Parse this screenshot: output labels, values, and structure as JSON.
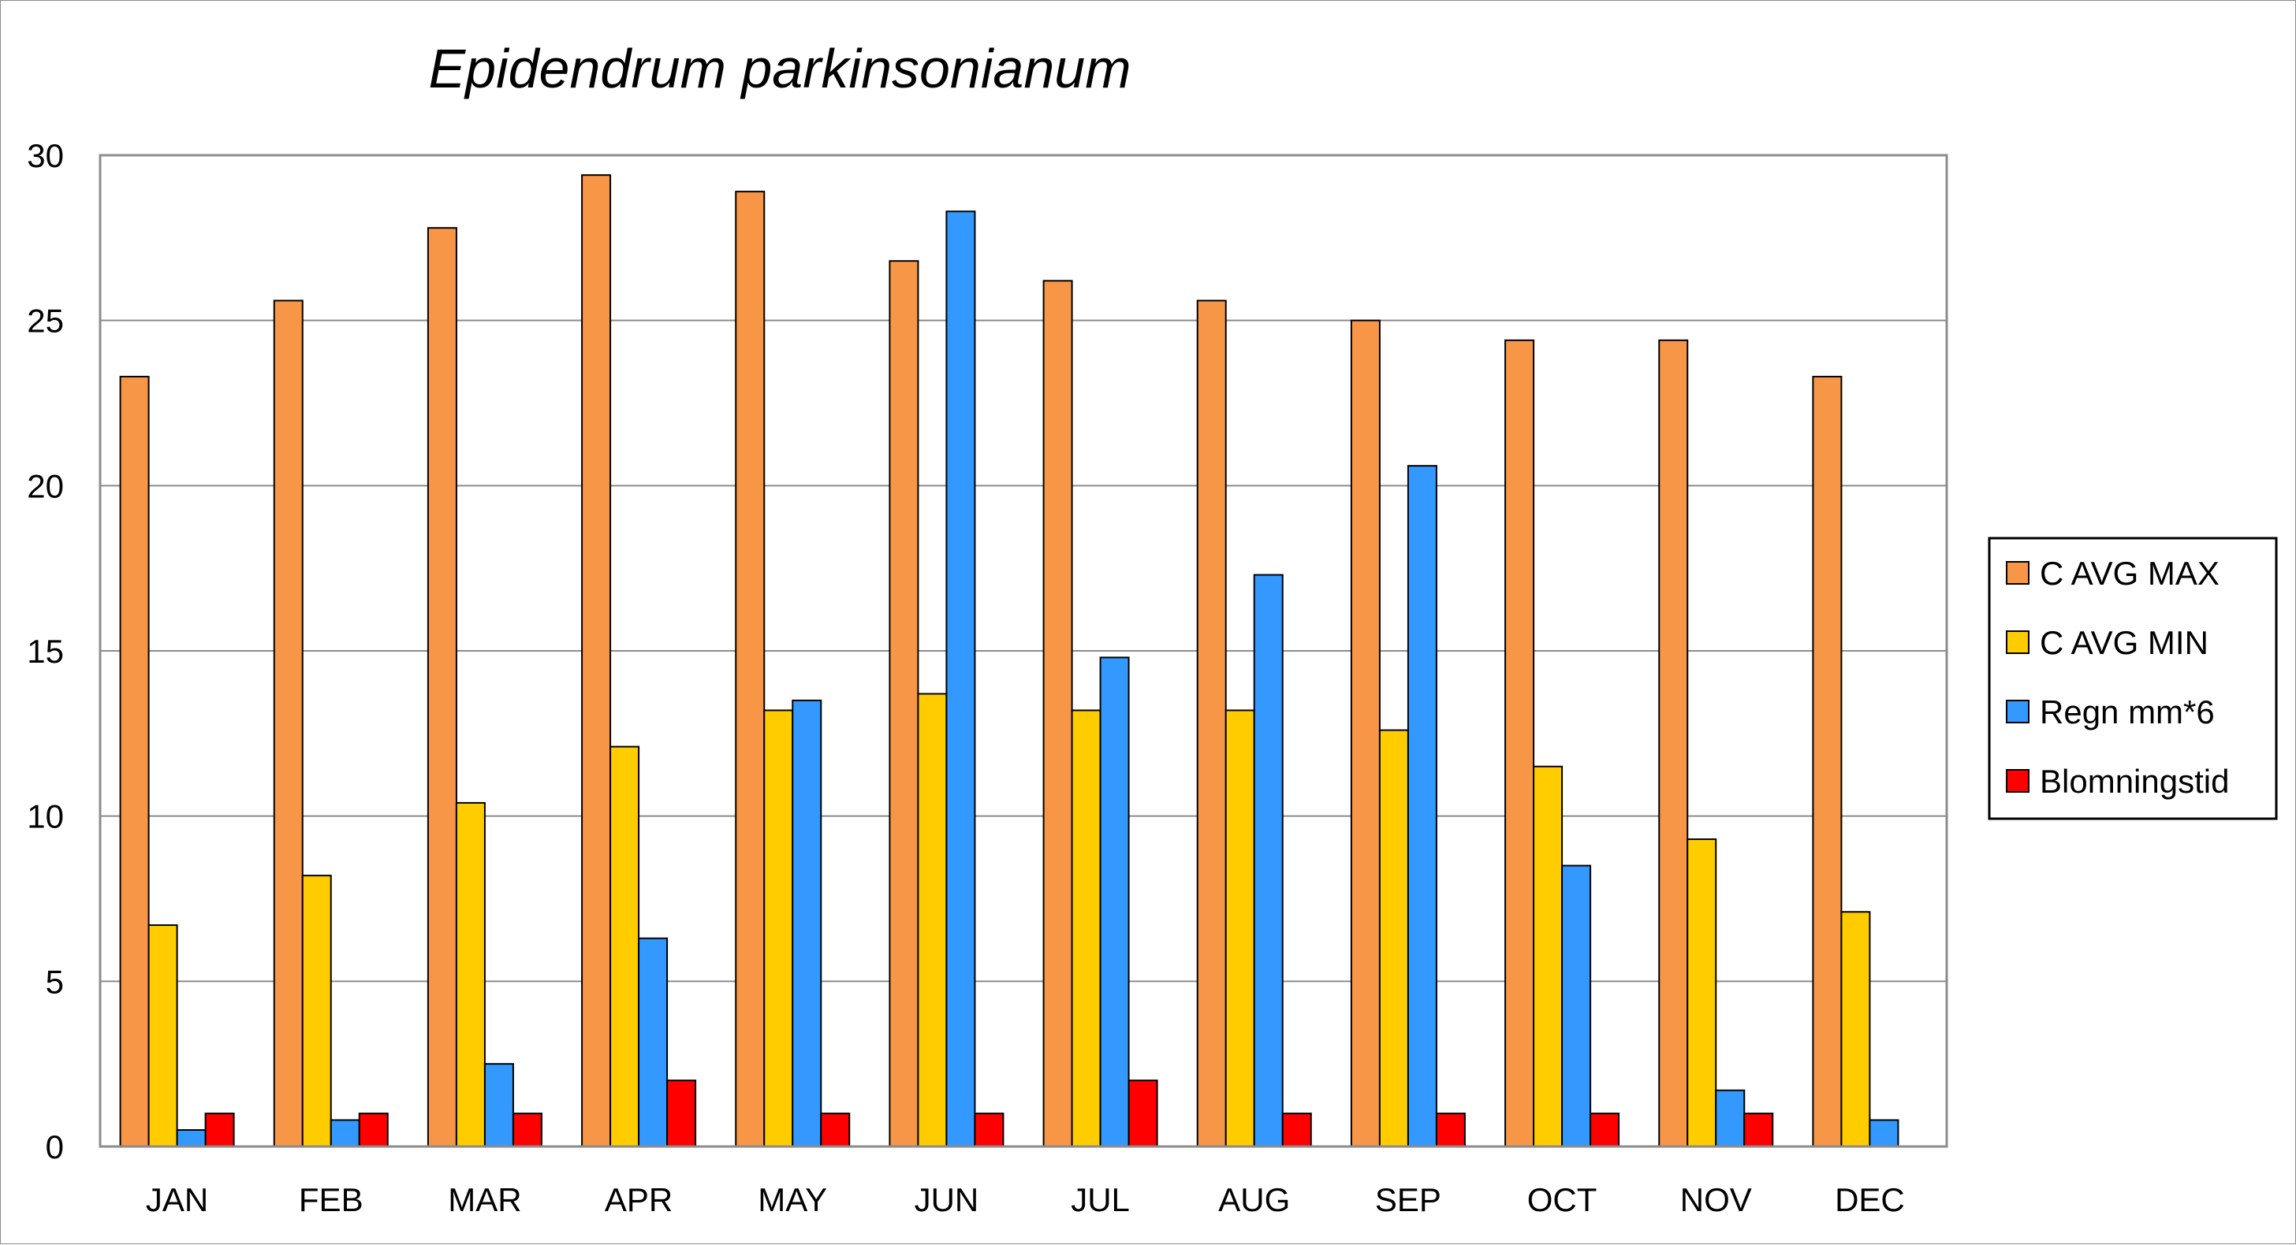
{
  "chart_data": {
    "type": "bar",
    "title": "Epidendrum parkinsonianum",
    "xlabel": "",
    "ylabel": "",
    "categories": [
      "JAN",
      "FEB",
      "MAR",
      "APR",
      "MAY",
      "JUN",
      "JUL",
      "AUG",
      "SEP",
      "OCT",
      "NOV",
      "DEC"
    ],
    "ylim": [
      0,
      30
    ],
    "yticks": [
      0,
      5,
      10,
      15,
      20,
      25,
      30
    ],
    "grid": true,
    "legend_position": "right",
    "series": [
      {
        "name": "C AVG MAX",
        "color": "#F79646",
        "values": [
          23.3,
          25.6,
          27.8,
          29.4,
          28.9,
          26.8,
          26.2,
          25.6,
          25.0,
          24.4,
          24.4,
          23.3
        ]
      },
      {
        "name": "C AVG MIN",
        "color": "#FFCC00",
        "values": [
          6.7,
          8.2,
          10.4,
          12.1,
          13.2,
          13.7,
          13.2,
          13.2,
          12.6,
          11.5,
          9.3,
          7.1
        ]
      },
      {
        "name": "Regn mm*6",
        "color": "#3399FF",
        "values": [
          0.5,
          0.8,
          2.5,
          6.3,
          13.5,
          28.3,
          14.8,
          17.3,
          20.6,
          8.5,
          1.7,
          0.8
        ]
      },
      {
        "name": "Blomningstid",
        "color": "#FF0000",
        "values": [
          1,
          1,
          1,
          2,
          1,
          1,
          2,
          1,
          1,
          1,
          1,
          0
        ]
      }
    ]
  }
}
